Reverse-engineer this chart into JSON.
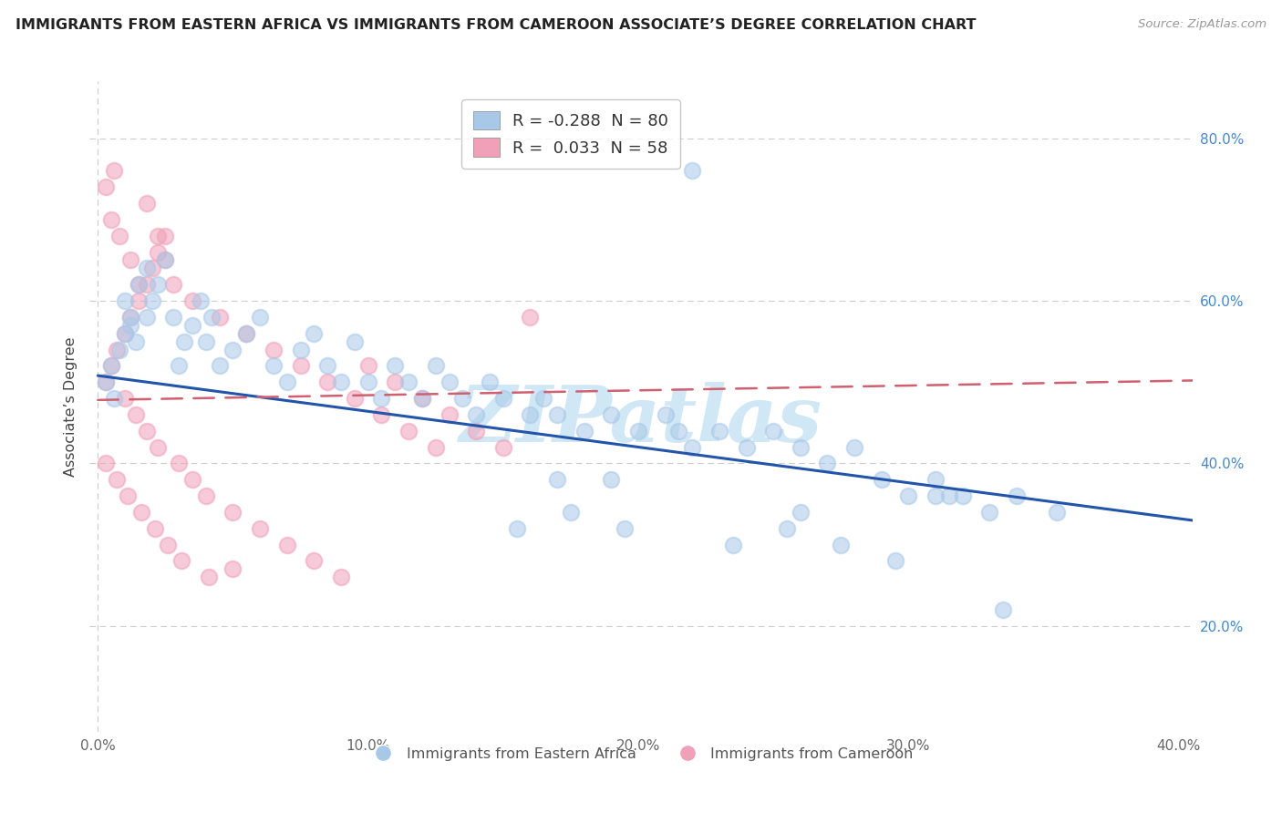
{
  "title": "IMMIGRANTS FROM EASTERN AFRICA VS IMMIGRANTS FROM CAMEROON ASSOCIATE’S DEGREE CORRELATION CHART",
  "source": "Source: ZipAtlas.com",
  "xlabel_blue": "Immigrants from Eastern Africa",
  "xlabel_pink": "Immigrants from Cameroon",
  "ylabel": "Associate’s Degree",
  "xlim": [
    -0.003,
    0.405
  ],
  "ylim": [
    0.07,
    0.87
  ],
  "xtick_vals": [
    0.0,
    0.1,
    0.2,
    0.3,
    0.4
  ],
  "xtick_labels": [
    "0.0%",
    "",
    "",
    "",
    "40.0%"
  ],
  "ytick_vals": [
    0.2,
    0.4,
    0.6,
    0.8
  ],
  "ytick_labels": [
    "20.0%",
    "40.0%",
    "60.0%",
    "80.0%"
  ],
  "legend_blue_R": "-0.288",
  "legend_blue_N": "80",
  "legend_pink_R": "0.033",
  "legend_pink_N": "58",
  "blue_color": "#a8c8e8",
  "pink_color": "#f0a0b8",
  "trend_blue_color": "#2255aa",
  "trend_pink_color": "#d06070",
  "watermark_text": "ZIPatlas",
  "watermark_color": "#d0e8f5",
  "blue_trend_x": [
    0.0,
    0.405
  ],
  "blue_trend_y": [
    0.508,
    0.33
  ],
  "pink_trend_x": [
    0.0,
    0.405
  ],
  "pink_trend_y": [
    0.478,
    0.502
  ],
  "blue_scatter_x": [
    0.003,
    0.005,
    0.006,
    0.008,
    0.01,
    0.012,
    0.014,
    0.01,
    0.015,
    0.012,
    0.018,
    0.02,
    0.022,
    0.018,
    0.025,
    0.028,
    0.03,
    0.032,
    0.035,
    0.038,
    0.04,
    0.042,
    0.045,
    0.05,
    0.055,
    0.06,
    0.065,
    0.07,
    0.075,
    0.08,
    0.085,
    0.09,
    0.095,
    0.1,
    0.105,
    0.11,
    0.115,
    0.12,
    0.125,
    0.13,
    0.135,
    0.14,
    0.145,
    0.15,
    0.16,
    0.165,
    0.17,
    0.18,
    0.19,
    0.2,
    0.21,
    0.215,
    0.22,
    0.23,
    0.24,
    0.25,
    0.26,
    0.27,
    0.28,
    0.29,
    0.3,
    0.31,
    0.32,
    0.33,
    0.34,
    0.22,
    0.17,
    0.26,
    0.31,
    0.19,
    0.155,
    0.175,
    0.195,
    0.235,
    0.255,
    0.275,
    0.295,
    0.315,
    0.335,
    0.355
  ],
  "blue_scatter_y": [
    0.5,
    0.52,
    0.48,
    0.54,
    0.56,
    0.58,
    0.55,
    0.6,
    0.62,
    0.57,
    0.58,
    0.6,
    0.62,
    0.64,
    0.65,
    0.58,
    0.52,
    0.55,
    0.57,
    0.6,
    0.55,
    0.58,
    0.52,
    0.54,
    0.56,
    0.58,
    0.52,
    0.5,
    0.54,
    0.56,
    0.52,
    0.5,
    0.55,
    0.5,
    0.48,
    0.52,
    0.5,
    0.48,
    0.52,
    0.5,
    0.48,
    0.46,
    0.5,
    0.48,
    0.46,
    0.48,
    0.46,
    0.44,
    0.46,
    0.44,
    0.46,
    0.44,
    0.42,
    0.44,
    0.42,
    0.44,
    0.42,
    0.4,
    0.42,
    0.38,
    0.36,
    0.38,
    0.36,
    0.34,
    0.36,
    0.76,
    0.38,
    0.34,
    0.36,
    0.38,
    0.32,
    0.34,
    0.32,
    0.3,
    0.32,
    0.3,
    0.28,
    0.36,
    0.22,
    0.34
  ],
  "pink_scatter_x": [
    0.003,
    0.005,
    0.007,
    0.01,
    0.012,
    0.015,
    0.018,
    0.02,
    0.022,
    0.025,
    0.005,
    0.008,
    0.012,
    0.015,
    0.018,
    0.022,
    0.025,
    0.028,
    0.003,
    0.006,
    0.01,
    0.014,
    0.018,
    0.022,
    0.03,
    0.035,
    0.04,
    0.05,
    0.06,
    0.07,
    0.08,
    0.09,
    0.1,
    0.11,
    0.12,
    0.13,
    0.14,
    0.15,
    0.035,
    0.045,
    0.055,
    0.065,
    0.075,
    0.085,
    0.095,
    0.105,
    0.115,
    0.125,
    0.003,
    0.007,
    0.011,
    0.016,
    0.021,
    0.026,
    0.031,
    0.041,
    0.16,
    0.05
  ],
  "pink_scatter_y": [
    0.5,
    0.52,
    0.54,
    0.56,
    0.58,
    0.6,
    0.62,
    0.64,
    0.66,
    0.68,
    0.7,
    0.68,
    0.65,
    0.62,
    0.72,
    0.68,
    0.65,
    0.62,
    0.74,
    0.76,
    0.48,
    0.46,
    0.44,
    0.42,
    0.4,
    0.38,
    0.36,
    0.34,
    0.32,
    0.3,
    0.28,
    0.26,
    0.52,
    0.5,
    0.48,
    0.46,
    0.44,
    0.42,
    0.6,
    0.58,
    0.56,
    0.54,
    0.52,
    0.5,
    0.48,
    0.46,
    0.44,
    0.42,
    0.4,
    0.38,
    0.36,
    0.34,
    0.32,
    0.3,
    0.28,
    0.26,
    0.58,
    0.27
  ]
}
